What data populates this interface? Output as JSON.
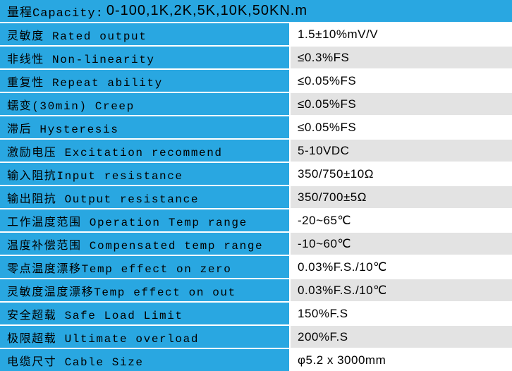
{
  "header": {
    "label": "量程Capacity:",
    "value": "0-100,1K,2K,5K,10K,50KN.m"
  },
  "table": {
    "rows": [
      [
        "灵敏度 Rated output",
        "1.5±10%mV/V"
      ],
      [
        "非线性 Non-linearity",
        "≤0.3%FS"
      ],
      [
        "重复性 Repeat ability",
        "≤0.05%FS"
      ],
      [
        "蠕变(30min) Creep",
        "≤0.05%FS"
      ],
      [
        "滞后 Hysteresis",
        "≤0.05%FS"
      ],
      [
        "激励电压 Excitation recommend",
        "5-10VDC"
      ],
      [
        "输入阻抗Input resistance",
        "350/750±10Ω"
      ],
      [
        "输出阻抗 Output resistance",
        "350/700±5Ω"
      ],
      [
        "工作温度范围 Operation Temp range",
        "-20~65℃"
      ],
      [
        "温度补偿范围 Compensated temp range",
        "-10~60℃"
      ],
      [
        "零点温度漂移Temp effect on zero",
        "0.03%F.S./10℃"
      ],
      [
        "灵敏度温度漂移Temp effect on out",
        "0.03%F.S./10℃"
      ],
      [
        "安全超载 Safe Load Limit",
        "150%F.S"
      ],
      [
        "极限超载 Ultimate overload",
        "200%F.S"
      ],
      [
        "电缆尺寸 Cable Size",
        "φ5.2 x 3000mm"
      ]
    ]
  }
}
